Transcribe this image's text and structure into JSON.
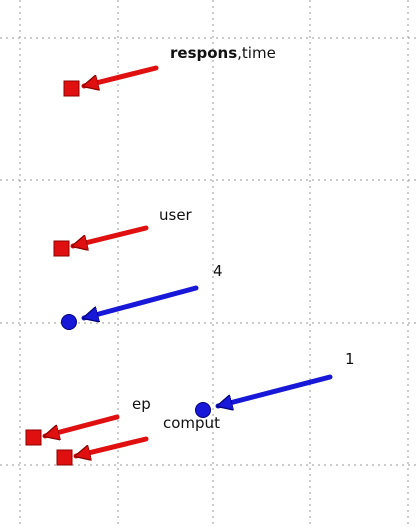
{
  "labels": {
    "respons_time_bold": "respons",
    "respons_time_rest": ",time",
    "user": "user",
    "four": "4",
    "one": "1",
    "ep": "ep",
    "comput": "comput"
  },
  "colors": {
    "background": "#ffffff",
    "grid": "#9a9a9a",
    "term_red": "#e01010",
    "term_red_outline": "#8b0000",
    "node_blue": "#1818d8",
    "node_blue_outline": "#00007a"
  },
  "markers": [
    {
      "id": "respons-time",
      "shape": "square",
      "color": "term_red"
    },
    {
      "id": "user",
      "shape": "square",
      "color": "term_red"
    },
    {
      "id": "four",
      "shape": "circle",
      "color": "node_blue"
    },
    {
      "id": "one",
      "shape": "circle",
      "color": "node_blue"
    },
    {
      "id": "ep",
      "shape": "square",
      "color": "term_red"
    },
    {
      "id": "comput",
      "shape": "square",
      "color": "term_red"
    }
  ]
}
